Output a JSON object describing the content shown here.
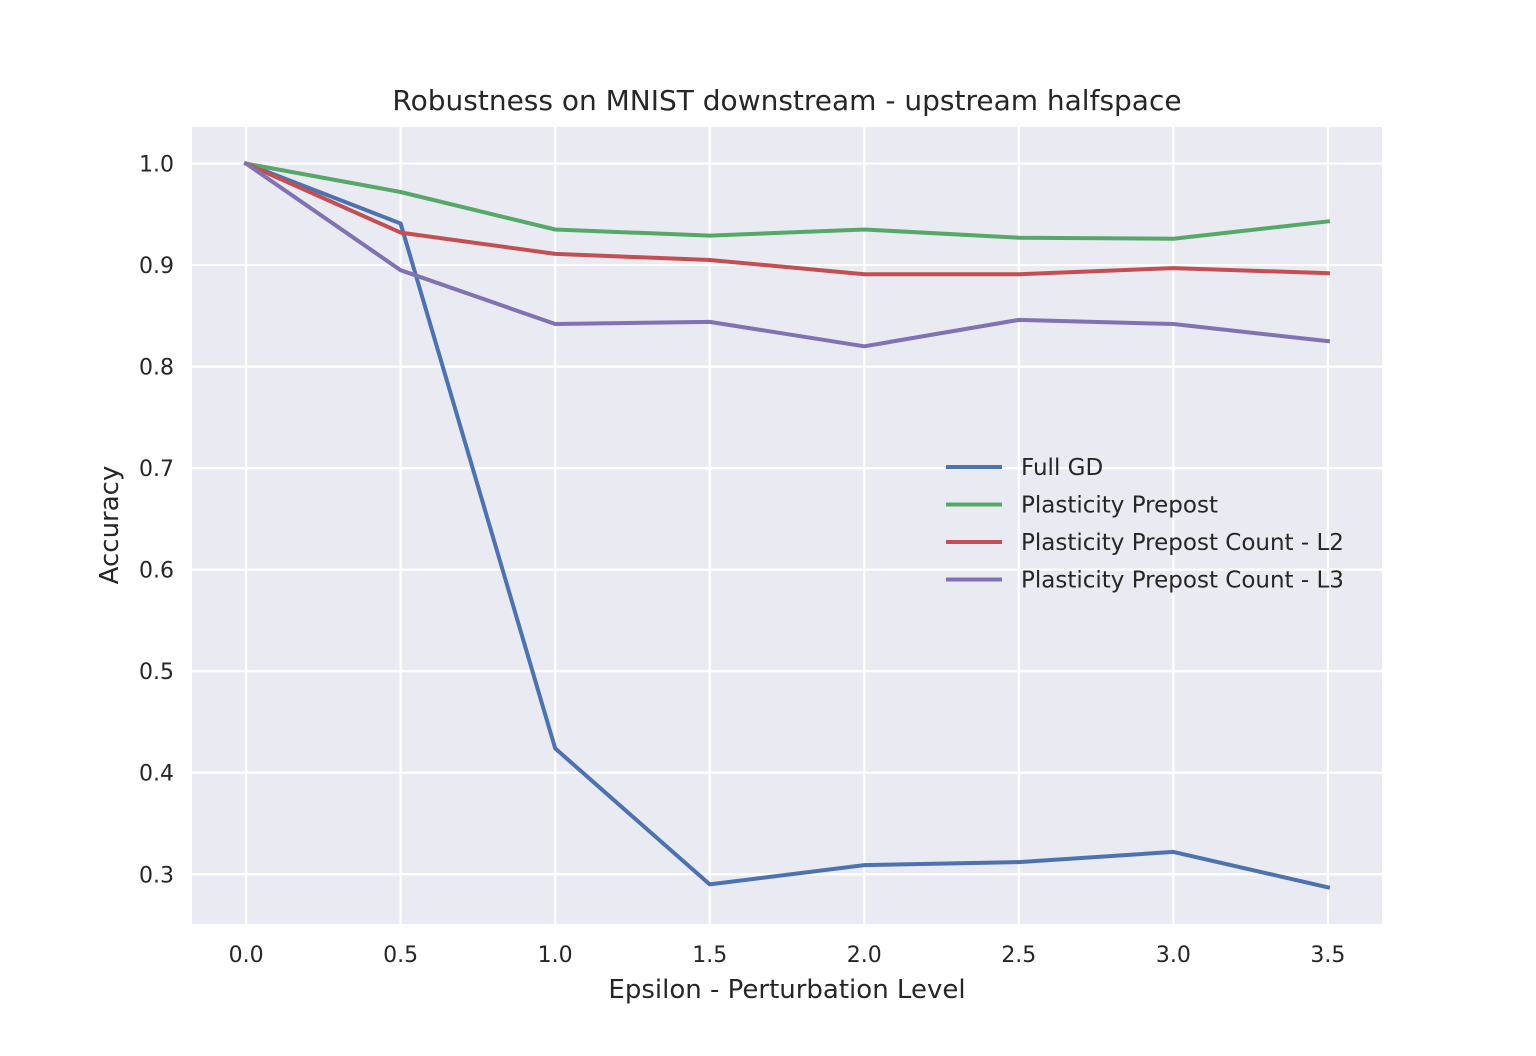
{
  "chart_data": {
    "type": "line",
    "title": "Robustness on MNIST downstream - upstream halfspace",
    "xlabel": "Epsilon - Perturbation Level",
    "ylabel": "Accuracy",
    "x": [
      0.0,
      0.5,
      1.0,
      1.5,
      2.0,
      2.5,
      3.0,
      3.5
    ],
    "x_ticks": [
      "0.0",
      "0.5",
      "1.0",
      "1.5",
      "2.0",
      "2.5",
      "3.0",
      "3.5"
    ],
    "y_ticks": [
      "0.3",
      "0.4",
      "0.5",
      "0.6",
      "0.7",
      "0.8",
      "0.9",
      "1.0"
    ],
    "xlim": [
      -0.175,
      3.675
    ],
    "ylim": [
      0.251,
      1.036
    ],
    "grid": true,
    "legend_position": "center-right",
    "series": [
      {
        "name": "Full GD",
        "color": "#4c72b0",
        "values": [
          1.0,
          0.941,
          0.424,
          0.29,
          0.309,
          0.312,
          0.322,
          0.287
        ]
      },
      {
        "name": "Plasticity Prepost",
        "color": "#55a868",
        "values": [
          1.0,
          0.972,
          0.935,
          0.929,
          0.935,
          0.927,
          0.926,
          0.943
        ]
      },
      {
        "name": "Plasticity Prepost Count - L2",
        "color": "#c44e52",
        "values": [
          1.0,
          0.932,
          0.911,
          0.905,
          0.891,
          0.891,
          0.897,
          0.892
        ]
      },
      {
        "name": "Plasticity Prepost Count - L3",
        "color": "#8172b3",
        "values": [
          1.0,
          0.895,
          0.842,
          0.844,
          0.82,
          0.846,
          0.842,
          0.825
        ]
      }
    ]
  }
}
